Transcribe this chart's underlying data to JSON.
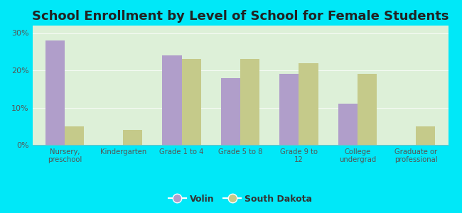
{
  "title": "School Enrollment by Level of School for Female Students",
  "categories": [
    "Nursery,\npreschool",
    "Kindergarten",
    "Grade 1 to 4",
    "Grade 5 to 8",
    "Grade 9 to\n12",
    "College\nundergrad",
    "Graduate or\nprofessional"
  ],
  "volin": [
    28,
    0,
    24,
    18,
    19,
    11,
    0
  ],
  "south_dakota": [
    5,
    4,
    23,
    23,
    22,
    19,
    5
  ],
  "volin_color": "#b09eca",
  "sd_color": "#c5ca8a",
  "background_outer": "#00e8f8",
  "background_inner_bottom": "#d4edcc",
  "background_inner_top": "#eef7ea",
  "yticks": [
    0,
    10,
    20,
    30
  ],
  "ylim": [
    0,
    32
  ],
  "legend_labels": [
    "Volin",
    "South Dakota"
  ],
  "title_fontsize": 13
}
